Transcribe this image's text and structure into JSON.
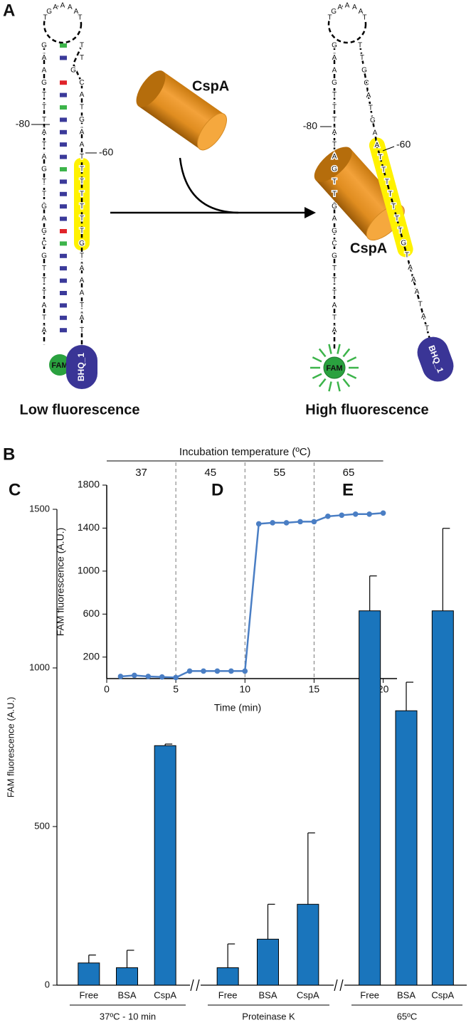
{
  "diagram": {
    "panel": "A",
    "loop": [
      "T",
      "G",
      "A",
      "A",
      "A",
      "A",
      "T"
    ],
    "left_strand": [
      "G",
      "A",
      "A",
      "G",
      "T",
      "T",
      "T",
      "A",
      "T",
      "A",
      "G",
      "T",
      "T",
      "G",
      "A",
      "G",
      "C",
      "G",
      "T",
      "T",
      "T",
      "A",
      "T",
      "A"
    ],
    "right_strand": [
      "T",
      "T",
      "G",
      "C",
      "A",
      "T",
      "G",
      "A",
      "A",
      "T",
      "T",
      "T",
      "T",
      "T",
      "T",
      "T",
      "G",
      "T",
      "A",
      "A",
      "A",
      "T",
      "A",
      "T"
    ],
    "positions": [
      "-80",
      "-60"
    ],
    "protein": "CspA",
    "fluorophore": "FAM",
    "quencher": "BHQ_1",
    "left_caption": "Low fluorescence",
    "right_caption": "High fluorescence"
  },
  "chart_data": [
    {
      "type": "line",
      "panel": "B",
      "top_axis_title": "Incubation temperature (ºC)",
      "phases": [
        "37",
        "45",
        "55",
        "65"
      ],
      "phase_bounds": [
        0,
        5,
        10,
        15,
        20
      ],
      "x_label": "Time (min)",
      "y_label": "FAM fluorescence (A.U.)",
      "x": [
        1,
        2,
        3,
        4,
        5,
        6,
        7,
        8,
        9,
        10,
        11,
        12,
        13,
        14,
        15,
        16,
        17,
        18,
        19,
        20
      ],
      "series": [
        {
          "color": "#4a7ec4",
          "values": [
            20,
            30,
            20,
            15,
            10,
            70,
            70,
            70,
            70,
            70,
            1440,
            1450,
            1450,
            1460,
            1460,
            1510,
            1520,
            1530,
            1530,
            1540
          ]
        }
      ],
      "xlim": [
        0,
        21
      ],
      "xticks": [
        0,
        5,
        10,
        15,
        20
      ],
      "ylim": [
        0,
        1800
      ],
      "yticks": [
        200,
        600,
        1000,
        1400,
        1800
      ]
    },
    {
      "type": "bar",
      "y_label": "FAM fluorescence (A.U.)",
      "color": "#1a75bc",
      "ylim": [
        0,
        1500
      ],
      "yticks": [
        0,
        500,
        1000,
        1500
      ],
      "groups": [
        {
          "panel": "C",
          "caption": "37ºC - 10 min",
          "categories": [
            "Free",
            "BSA",
            "CspA"
          ],
          "values": [
            70,
            55,
            755
          ],
          "errors": [
            25,
            55,
            5
          ]
        },
        {
          "panel": "D",
          "caption": "Proteinase K",
          "categories": [
            "Free",
            "BSA",
            "CspA"
          ],
          "values": [
            55,
            145,
            255
          ],
          "errors": [
            75,
            110,
            225
          ]
        },
        {
          "panel": "E",
          "caption": "65ºC",
          "categories": [
            "Free",
            "BSA",
            "CspA"
          ],
          "values": [
            1180,
            865,
            1180
          ],
          "errors": [
            110,
            90,
            260
          ]
        }
      ]
    }
  ]
}
